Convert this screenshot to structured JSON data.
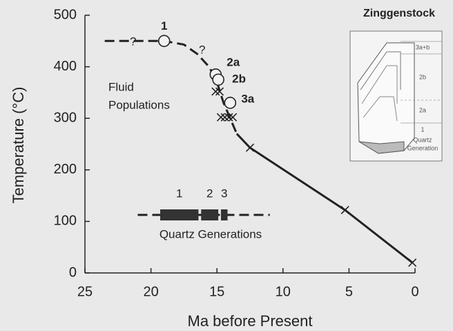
{
  "chart_data": {
    "type": "scatter",
    "xlabel": "Ma before Present",
    "ylabel": "Temperature (°C)",
    "xlim": [
      25,
      0
    ],
    "ylim": [
      0,
      500
    ],
    "xticks": [
      25,
      20,
      15,
      10,
      5,
      0
    ],
    "yticks": [
      0,
      100,
      200,
      300,
      400,
      500
    ],
    "color": "#222222",
    "trend": [
      {
        "style": "dashed",
        "x": [
          23.5,
          19,
          17.5,
          16.5,
          15.6,
          15,
          14.5,
          13.5
        ],
        "values": [
          450,
          450,
          443,
          425,
          400,
          370,
          330,
          270
        ]
      },
      {
        "style": "solid",
        "x": [
          13.5,
          12.5,
          5.3,
          0.2
        ],
        "values": [
          270,
          243,
          122,
          20
        ]
      }
    ],
    "fluid_populations": {
      "labels": [
        "1",
        "2a",
        "2b",
        "3a"
      ],
      "x": [
        19,
        15.1,
        14.9,
        14
      ],
      "values": [
        450,
        385,
        375,
        330
      ]
    },
    "crosses": {
      "x": [
        15.1,
        14.8,
        14.7,
        14.4,
        14.1,
        13.8,
        12.5,
        5.3,
        0.2
      ],
      "values": [
        352,
        352,
        302,
        302,
        302,
        302,
        243,
        122,
        20
      ]
    },
    "question_marks": [
      "?",
      "?"
    ],
    "annotations": [
      "Fluid",
      "Populations"
    ],
    "quartz_generations": {
      "title": "Quartz Generations",
      "labels": [
        "1",
        "2",
        "3"
      ],
      "start": [
        19.3,
        16.2,
        14.7
      ],
      "end": [
        16.4,
        14.9,
        14.2
      ],
      "range": [
        21,
        11
      ]
    },
    "inset": {
      "title": "Zinggenstock",
      "labels": [
        "3a+b",
        "2b",
        "2a",
        "1",
        "Quartz",
        "Generation"
      ]
    }
  }
}
